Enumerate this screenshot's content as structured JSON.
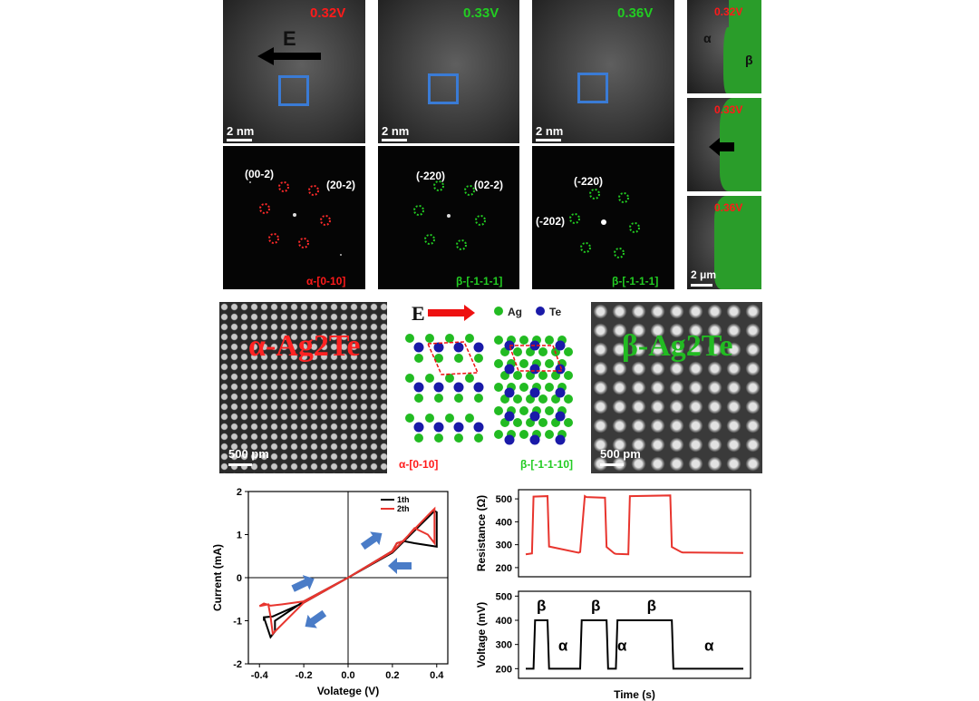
{
  "panel_a": {
    "tem": [
      {
        "voltage": "0.32V",
        "voltage_color": "#ff1a1a",
        "scale": "2 nm",
        "field_label": "E"
      },
      {
        "voltage": "0.33V",
        "voltage_color": "#22cc22",
        "scale": "2 nm"
      },
      {
        "voltage": "0.36V",
        "voltage_color": "#22cc22",
        "scale": "2 nm"
      }
    ],
    "fft": [
      {
        "planes": [
          "(00-2)",
          "(20-2)"
        ],
        "zone": "α-[0-10]",
        "zone_color": "#ff1a1a"
      },
      {
        "planes": [
          "(-220)",
          "(02-2)"
        ],
        "zone": "β-[-1-1-1]",
        "zone_color": "#22cc22"
      },
      {
        "planes": [
          "(-220)",
          "(-202)"
        ],
        "zone": "β-[-1-1-1]",
        "zone_color": "#22cc22"
      }
    ],
    "side": [
      {
        "voltage": "0.32V",
        "alpha": "α",
        "beta": "β"
      },
      {
        "voltage": "0.33V"
      },
      {
        "voltage": "0.36V",
        "scale": "2 μm"
      }
    ]
  },
  "panel_b": {
    "left_label": "α-Ag2Te",
    "right_label": "β-Ag2Te",
    "left_scale": "500 pm",
    "right_scale": "500 pm",
    "field_label": "E",
    "legend": [
      {
        "name": "Ag",
        "color": "#22bb22"
      },
      {
        "name": "Te",
        "color": "#1a1aa8"
      }
    ],
    "alpha_zone": "α-[0-10]",
    "beta_zone": "β-[-1-1-10]"
  },
  "iv_chart": {
    "chart_data": {
      "type": "line",
      "xlabel": "Volatege (V)",
      "ylabel": "Current (mA)",
      "xlim": [
        -0.45,
        0.45
      ],
      "ylim": [
        -2,
        2
      ],
      "xticks": [
        "-0.4",
        "-0.2",
        "0.0",
        "0.2",
        "0.4"
      ],
      "yticks": [
        "2",
        "1",
        "0",
        "-1",
        "-2"
      ],
      "series": [
        {
          "name": "1th",
          "color": "#000000",
          "x": [
            -0.38,
            -0.35,
            -0.33,
            -0.33,
            -0.2,
            0.0,
            0.2,
            0.38,
            0.39,
            0.4,
            0.4,
            0.3,
            0.25,
            0.22,
            0.2,
            0.0,
            -0.2,
            -0.34,
            -0.38,
            -0.38
          ],
          "y": [
            -0.92,
            -1.38,
            -1.25,
            -1.0,
            -0.55,
            0.0,
            0.58,
            1.5,
            1.55,
            1.52,
            0.72,
            0.8,
            0.85,
            0.8,
            0.62,
            0.0,
            -0.58,
            -0.9,
            -0.92,
            -1.0
          ]
        },
        {
          "name": "2th",
          "color": "#e8352e",
          "x": [
            -0.4,
            -0.36,
            -0.35,
            -0.34,
            -0.2,
            0.0,
            0.2,
            0.38,
            0.39,
            0.39,
            0.36,
            0.3,
            0.25,
            0.22,
            0.2,
            0.0,
            -0.2,
            -0.3,
            -0.35,
            -0.38,
            -0.4
          ],
          "y": [
            -0.66,
            -0.62,
            -0.9,
            -1.3,
            -0.58,
            0.0,
            0.6,
            1.55,
            1.6,
            0.8,
            1.0,
            1.15,
            0.85,
            0.8,
            0.62,
            0.0,
            -0.55,
            -0.62,
            -0.65,
            -0.6,
            -0.66
          ]
        }
      ]
    }
  },
  "resistance_chart": {
    "chart_data": {
      "type": "line",
      "ylabel": "Resistance (Ω)",
      "ylim": [
        160,
        540
      ],
      "yticks": [
        "500",
        "400",
        "300",
        "200"
      ],
      "x": [
        0,
        4,
        5,
        14,
        15,
        34,
        35,
        38,
        39,
        51,
        52,
        57,
        58,
        66,
        67,
        93,
        94,
        100,
        101,
        140
      ],
      "values": [
        258,
        262,
        510,
        512,
        292,
        265,
        268,
        512,
        508,
        505,
        290,
        262,
        260,
        258,
        512,
        515,
        290,
        268,
        266,
        264
      ]
    }
  },
  "voltage_chart": {
    "chart_data": {
      "type": "line",
      "xlabel": "Time (s)",
      "ylabel": "Voltage (mV)",
      "ylim": [
        160,
        520
      ],
      "yticks": [
        "500",
        "400",
        "300",
        "200"
      ],
      "x": [
        0,
        5,
        6,
        14,
        15,
        35,
        36,
        38,
        39,
        52,
        53,
        58,
        59,
        67,
        68,
        94,
        95,
        140
      ],
      "values": [
        200,
        200,
        400,
        400,
        200,
        200,
        400,
        400,
        400,
        400,
        200,
        200,
        400,
        400,
        400,
        400,
        200,
        200
      ],
      "phase_labels": [
        "β",
        "α",
        "β",
        "α",
        "β",
        "α"
      ]
    }
  }
}
